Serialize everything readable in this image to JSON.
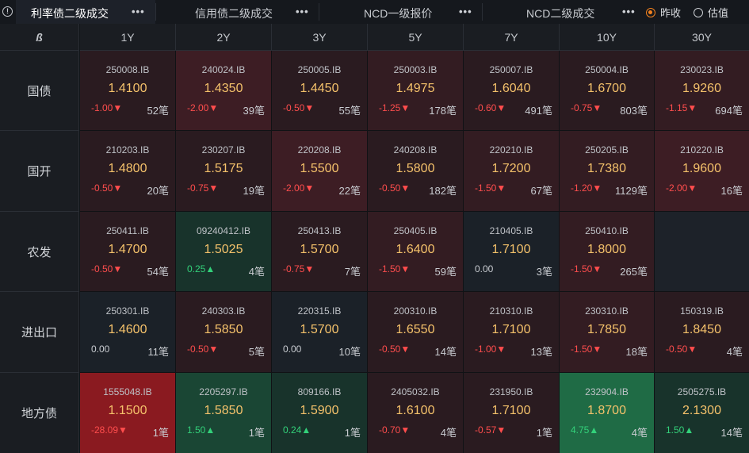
{
  "tabs": [
    {
      "label": "利率债二级成交",
      "menu": "•••",
      "active": true
    },
    {
      "label": "信用债二级成交",
      "menu": "•••",
      "active": false
    },
    {
      "label": "NCD一级报价",
      "menu": "•••",
      "active": false
    },
    {
      "label": "NCD二级成交",
      "menu": "•••",
      "active": false
    }
  ],
  "radios": [
    {
      "label": "昨收",
      "selected": true
    },
    {
      "label": "估值",
      "selected": false
    }
  ],
  "corner_label": "ß",
  "tenors": [
    "1Y",
    "2Y",
    "3Y",
    "5Y",
    "7Y",
    "10Y",
    "30Y"
  ],
  "rows": [
    {
      "name": "国债",
      "cells": [
        {
          "code": "250008.IB",
          "yield": "1.4100",
          "change": "-1.00▼",
          "count": "52笔",
          "dir": "down",
          "bg": "r1"
        },
        {
          "code": "240024.IB",
          "yield": "1.4350",
          "change": "-2.00▼",
          "count": "39笔",
          "dir": "down",
          "bg": "r3"
        },
        {
          "code": "250005.IB",
          "yield": "1.4450",
          "change": "-0.50▼",
          "count": "55笔",
          "dir": "down",
          "bg": "r1"
        },
        {
          "code": "250003.IB",
          "yield": "1.4975",
          "change": "-1.25▼",
          "count": "178笔",
          "dir": "down",
          "bg": "r2"
        },
        {
          "code": "250007.IB",
          "yield": "1.6040",
          "change": "-0.60▼",
          "count": "491笔",
          "dir": "down",
          "bg": "r1"
        },
        {
          "code": "250004.IB",
          "yield": "1.6700",
          "change": "-0.75▼",
          "count": "803笔",
          "dir": "down",
          "bg": "r1"
        },
        {
          "code": "230023.IB",
          "yield": "1.9260",
          "change": "-1.15▼",
          "count": "694笔",
          "dir": "down",
          "bg": "r2"
        }
      ]
    },
    {
      "name": "国开",
      "cells": [
        {
          "code": "210203.IB",
          "yield": "1.4800",
          "change": "-0.50▼",
          "count": "20笔",
          "dir": "down",
          "bg": "r1"
        },
        {
          "code": "230207.IB",
          "yield": "1.5175",
          "change": "-0.75▼",
          "count": "19笔",
          "dir": "down",
          "bg": "r1"
        },
        {
          "code": "220208.IB",
          "yield": "1.5500",
          "change": "-2.00▼",
          "count": "22笔",
          "dir": "down",
          "bg": "r3"
        },
        {
          "code": "240208.IB",
          "yield": "1.5800",
          "change": "-0.50▼",
          "count": "182笔",
          "dir": "down",
          "bg": "r1"
        },
        {
          "code": "220210.IB",
          "yield": "1.7200",
          "change": "-1.50▼",
          "count": "67笔",
          "dir": "down",
          "bg": "r2"
        },
        {
          "code": "250205.IB",
          "yield": "1.7380",
          "change": "-1.20▼",
          "count": "1129笔",
          "dir": "down",
          "bg": "r2"
        },
        {
          "code": "210220.IB",
          "yield": "1.9600",
          "change": "-2.00▼",
          "count": "16笔",
          "dir": "down",
          "bg": "r3"
        }
      ]
    },
    {
      "name": "农发",
      "cells": [
        {
          "code": "250411.IB",
          "yield": "1.4700",
          "change": "-0.50▼",
          "count": "54笔",
          "dir": "down",
          "bg": "r1"
        },
        {
          "code": "09240412.IB",
          "yield": "1.5025",
          "change": "0.25▲",
          "count": "4笔",
          "dir": "up",
          "bg": "g1"
        },
        {
          "code": "250413.IB",
          "yield": "1.5700",
          "change": "-0.75▼",
          "count": "7笔",
          "dir": "down",
          "bg": "r1"
        },
        {
          "code": "250405.IB",
          "yield": "1.6400",
          "change": "-1.50▼",
          "count": "59笔",
          "dir": "down",
          "bg": "r2"
        },
        {
          "code": "210405.IB",
          "yield": "1.7100",
          "change": "0.00",
          "count": "3笔",
          "dir": "flat",
          "bg": "n"
        },
        {
          "code": "250410.IB",
          "yield": "1.8000",
          "change": "-1.50▼",
          "count": "265笔",
          "dir": "down",
          "bg": "r2"
        },
        {
          "code": "",
          "yield": "",
          "change": "",
          "count": "",
          "dir": "flat",
          "bg": "empty"
        }
      ]
    },
    {
      "name": "进出口",
      "cells": [
        {
          "code": "250301.IB",
          "yield": "1.4600",
          "change": "0.00",
          "count": "11笔",
          "dir": "flat",
          "bg": "n"
        },
        {
          "code": "240303.IB",
          "yield": "1.5850",
          "change": "-0.50▼",
          "count": "5笔",
          "dir": "down",
          "bg": "r1"
        },
        {
          "code": "220315.IB",
          "yield": "1.5700",
          "change": "0.00",
          "count": "10笔",
          "dir": "flat",
          "bg": "n"
        },
        {
          "code": "200310.IB",
          "yield": "1.6550",
          "change": "-0.50▼",
          "count": "14笔",
          "dir": "down",
          "bg": "r1"
        },
        {
          "code": "210310.IB",
          "yield": "1.7100",
          "change": "-1.00▼",
          "count": "13笔",
          "dir": "down",
          "bg": "r1"
        },
        {
          "code": "230310.IB",
          "yield": "1.7850",
          "change": "-1.50▼",
          "count": "18笔",
          "dir": "down",
          "bg": "r2"
        },
        {
          "code": "150319.IB",
          "yield": "1.8450",
          "change": "-0.50▼",
          "count": "4笔",
          "dir": "down",
          "bg": "r1"
        }
      ]
    },
    {
      "name": "地方债",
      "cells": [
        {
          "code": "1555048.IB",
          "yield": "1.1500",
          "change": "-28.09▼",
          "count": "1笔",
          "dir": "down",
          "bg": "red"
        },
        {
          "code": "2205297.IB",
          "yield": "1.5850",
          "change": "1.50▲",
          "count": "1笔",
          "dir": "up",
          "bg": "g2"
        },
        {
          "code": "809166.IB",
          "yield": "1.5900",
          "change": "0.24▲",
          "count": "1笔",
          "dir": "up",
          "bg": "g1"
        },
        {
          "code": "2405032.IB",
          "yield": "1.6100",
          "change": "-0.70▼",
          "count": "4笔",
          "dir": "down",
          "bg": "r1"
        },
        {
          "code": "231950.IB",
          "yield": "1.7100",
          "change": "-0.57▼",
          "count": "1笔",
          "dir": "down",
          "bg": "r1"
        },
        {
          "code": "232904.IB",
          "yield": "1.8700",
          "change": "4.75▲",
          "count": "4笔",
          "dir": "up",
          "bg": "g3"
        },
        {
          "code": "2505275.IB",
          "yield": "2.1300",
          "change": "1.50▲",
          "count": "14笔",
          "dir": "up",
          "bg": "g1"
        }
      ]
    }
  ]
}
